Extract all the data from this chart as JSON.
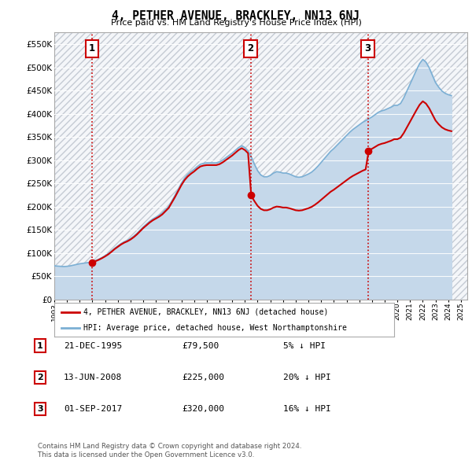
{
  "title": "4, PETHER AVENUE, BRACKLEY, NN13 6NJ",
  "subtitle": "Price paid vs. HM Land Registry's House Price Index (HPI)",
  "ylim": [
    0,
    575000
  ],
  "yticks": [
    0,
    50000,
    100000,
    150000,
    200000,
    250000,
    300000,
    350000,
    400000,
    450000,
    500000,
    550000
  ],
  "ytick_labels": [
    "£0",
    "£50K",
    "£100K",
    "£150K",
    "£200K",
    "£250K",
    "£300K",
    "£350K",
    "£400K",
    "£450K",
    "£500K",
    "£550K"
  ],
  "xlim": [
    1993.0,
    2025.5
  ],
  "chart_bg_color": "#e8eef5",
  "hatch_bg_color": "#dde4ec",
  "hpi_line_color": "#7bafd4",
  "hpi_fill_color": "#c5d8ea",
  "price_color": "#cc0000",
  "vline_color": "#cc0000",
  "grid_color": "#c0ccd8",
  "purchases": [
    {
      "year": 1995.97,
      "price": 79500,
      "label": "1"
    },
    {
      "year": 2008.45,
      "price": 225000,
      "label": "2"
    },
    {
      "year": 2017.67,
      "price": 320000,
      "label": "3"
    }
  ],
  "legend_entries": [
    "4, PETHER AVENUE, BRACKLEY, NN13 6NJ (detached house)",
    "HPI: Average price, detached house, West Northamptonshire"
  ],
  "table_rows": [
    {
      "num": "1",
      "date": "21-DEC-1995",
      "price": "£79,500",
      "note": "5% ↓ HPI"
    },
    {
      "num": "2",
      "date": "13-JUN-2008",
      "price": "£225,000",
      "note": "20% ↓ HPI"
    },
    {
      "num": "3",
      "date": "01-SEP-2017",
      "price": "£320,000",
      "note": "16% ↓ HPI"
    }
  ],
  "footnote": "Contains HM Land Registry data © Crown copyright and database right 2024.\nThis data is licensed under the Open Government Licence v3.0.",
  "hpi_data_years": [
    1993.0,
    1993.25,
    1993.5,
    1993.75,
    1994.0,
    1994.25,
    1994.5,
    1994.75,
    1995.0,
    1995.25,
    1995.5,
    1995.75,
    1996.0,
    1996.25,
    1996.5,
    1996.75,
    1997.0,
    1997.25,
    1997.5,
    1997.75,
    1998.0,
    1998.25,
    1998.5,
    1998.75,
    1999.0,
    1999.25,
    1999.5,
    1999.75,
    2000.0,
    2000.25,
    2000.5,
    2000.75,
    2001.0,
    2001.25,
    2001.5,
    2001.75,
    2002.0,
    2002.25,
    2002.5,
    2002.75,
    2003.0,
    2003.25,
    2003.5,
    2003.75,
    2004.0,
    2004.25,
    2004.5,
    2004.75,
    2005.0,
    2005.25,
    2005.5,
    2005.75,
    2006.0,
    2006.25,
    2006.5,
    2006.75,
    2007.0,
    2007.25,
    2007.5,
    2007.75,
    2008.0,
    2008.25,
    2008.5,
    2008.75,
    2009.0,
    2009.25,
    2009.5,
    2009.75,
    2010.0,
    2010.25,
    2010.5,
    2010.75,
    2011.0,
    2011.25,
    2011.5,
    2011.75,
    2012.0,
    2012.25,
    2012.5,
    2012.75,
    2013.0,
    2013.25,
    2013.5,
    2013.75,
    2014.0,
    2014.25,
    2014.5,
    2014.75,
    2015.0,
    2015.25,
    2015.5,
    2015.75,
    2016.0,
    2016.25,
    2016.5,
    2016.75,
    2017.0,
    2017.25,
    2017.5,
    2017.75,
    2018.0,
    2018.25,
    2018.5,
    2018.75,
    2019.0,
    2019.25,
    2019.5,
    2019.75,
    2020.0,
    2020.25,
    2020.5,
    2020.75,
    2021.0,
    2021.25,
    2021.5,
    2021.75,
    2022.0,
    2022.25,
    2022.5,
    2022.75,
    2023.0,
    2023.25,
    2023.5,
    2023.75,
    2024.0,
    2024.25
  ],
  "hpi_data_values": [
    72000,
    71500,
    71000,
    70500,
    71000,
    72000,
    73500,
    75000,
    76500,
    77500,
    78500,
    79500,
    81000,
    83500,
    86500,
    90000,
    94000,
    98500,
    104000,
    110000,
    115000,
    120000,
    124000,
    127000,
    131000,
    136000,
    142000,
    149000,
    156000,
    162000,
    168000,
    173000,
    177000,
    181000,
    186000,
    193000,
    200000,
    212000,
    224000,
    237000,
    250000,
    261000,
    269000,
    275000,
    280000,
    286000,
    291000,
    293000,
    294000,
    294000,
    294000,
    294000,
    296000,
    300000,
    305000,
    310000,
    315000,
    321000,
    327000,
    331000,
    327000,
    320000,
    307000,
    291000,
    277000,
    268000,
    264000,
    264000,
    267000,
    272000,
    275000,
    274000,
    272000,
    272000,
    270000,
    267000,
    264000,
    263000,
    264000,
    267000,
    270000,
    274000,
    280000,
    287000,
    295000,
    303000,
    311000,
    319000,
    325000,
    332000,
    339000,
    346000,
    353000,
    360000,
    366000,
    371000,
    376000,
    381000,
    385000,
    389000,
    393000,
    398000,
    403000,
    406000,
    408000,
    411000,
    414000,
    418000,
    418000,
    422000,
    434000,
    449000,
    464000,
    479000,
    494000,
    508000,
    517000,
    511000,
    499000,
    483000,
    467000,
    457000,
    449000,
    444000,
    441000,
    439000
  ]
}
